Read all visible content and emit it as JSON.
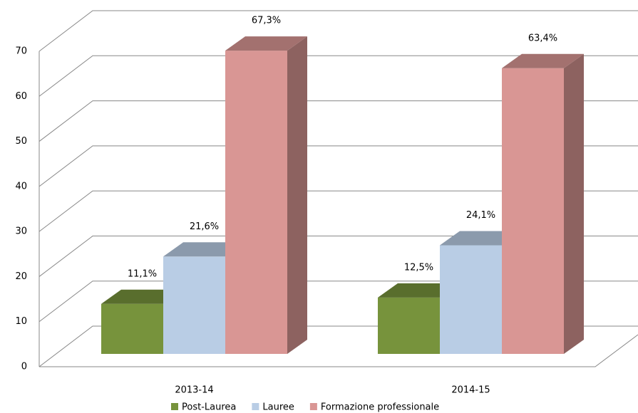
{
  "chart_data": {
    "type": "bar3d",
    "categories": [
      "2013-14",
      "2014-15"
    ],
    "series": [
      {
        "name": "Post-Laurea",
        "color": "#77933c",
        "values": [
          11.1,
          12.5
        ],
        "value_labels": [
          "11,1%",
          "12,5%"
        ]
      },
      {
        "name": "Lauree",
        "color": "#b9cde5",
        "values": [
          21.6,
          24.1
        ],
        "value_labels": [
          "21,6%",
          "24,1%"
        ]
      },
      {
        "name": "Formazione professionale",
        "color": "#d99694",
        "values": [
          67.3,
          63.4
        ],
        "value_labels": [
          "67,3%",
          "63,4%"
        ]
      }
    ],
    "ylim": [
      0,
      70
    ],
    "yticks": [
      0,
      10,
      20,
      30,
      40,
      50,
      60,
      70
    ],
    "grid": true,
    "legend": "bottom"
  }
}
